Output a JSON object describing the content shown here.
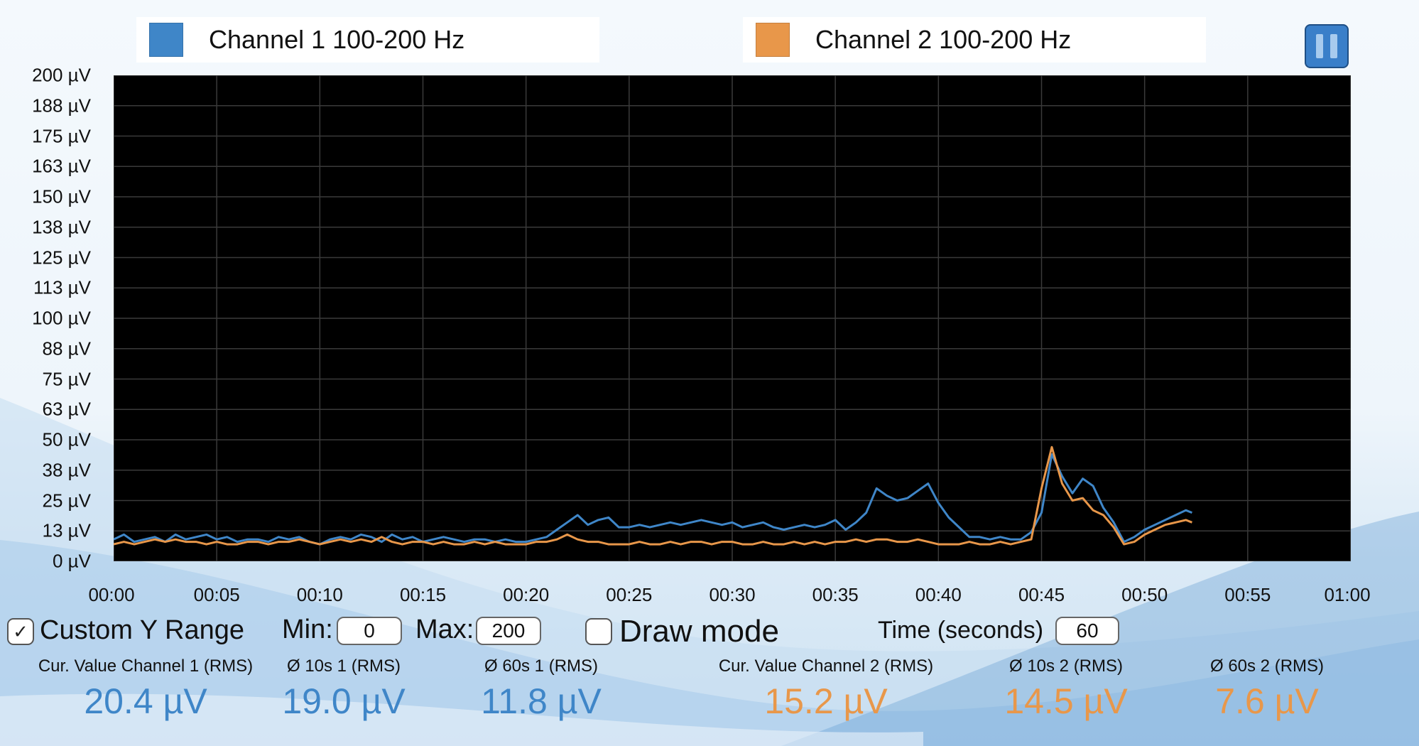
{
  "colors": {
    "channel1": "#3f86c8",
    "channel2": "#e8974a",
    "plot_bg": "#000000",
    "grid": "#3a3a3a"
  },
  "legend": [
    {
      "label": "Channel 1 100-200 Hz",
      "color": "#3f86c8"
    },
    {
      "label": "Channel 2 100-200 Hz",
      "color": "#e8974a"
    }
  ],
  "pause_button": {
    "icon": "pause-icon"
  },
  "chart_data": {
    "type": "line",
    "ylim": [
      0,
      200
    ],
    "xlim": [
      0,
      60
    ],
    "y_ticks": [
      "200 µV",
      "188 µV",
      "175 µV",
      "163 µV",
      "150 µV",
      "138 µV",
      "125 µV",
      "113 µV",
      "100 µV",
      "88 µV",
      "75 µV",
      "63 µV",
      "50 µV",
      "38 µV",
      "25 µV",
      "13 µV",
      "0 µV"
    ],
    "x_ticks": [
      "00:00",
      "00:05",
      "00:10",
      "00:15",
      "00:20",
      "00:25",
      "00:30",
      "00:35",
      "00:40",
      "00:45",
      "00:50",
      "00:55",
      "01:00"
    ],
    "grid": true,
    "series": [
      {
        "name": "Channel 1 100-200 Hz",
        "color": "#3f86c8",
        "x": [
          0,
          0.5,
          1,
          1.5,
          2,
          2.5,
          3,
          3.5,
          4,
          4.5,
          5,
          5.5,
          6,
          6.5,
          7,
          7.5,
          8,
          8.5,
          9,
          9.5,
          10,
          10.5,
          11,
          11.5,
          12,
          12.5,
          13,
          13.5,
          14,
          14.5,
          15,
          15.5,
          16,
          16.5,
          17,
          17.5,
          18,
          18.5,
          19,
          19.5,
          20,
          20.5,
          21,
          21.5,
          22,
          22.5,
          23,
          23.5,
          24,
          24.5,
          25,
          25.5,
          26,
          26.5,
          27,
          27.5,
          28,
          28.5,
          29,
          29.5,
          30,
          30.5,
          31,
          31.5,
          32,
          32.5,
          33,
          33.5,
          34,
          34.5,
          35,
          35.5,
          36,
          36.5,
          37,
          37.5,
          38,
          38.5,
          39,
          39.5,
          40,
          40.5,
          41,
          41.5,
          42,
          42.5,
          43,
          43.5,
          44,
          44.5,
          45,
          45.5,
          46,
          46.5,
          47,
          47.5,
          48,
          48.5,
          49,
          49.5,
          50,
          50.5,
          51,
          51.5,
          52,
          52.3
        ],
        "values": [
          9,
          11,
          8,
          9,
          10,
          8,
          11,
          9,
          10,
          11,
          9,
          10,
          8,
          9,
          9,
          8,
          10,
          9,
          10,
          8,
          7,
          9,
          10,
          9,
          11,
          10,
          8,
          11,
          9,
          10,
          8,
          9,
          10,
          9,
          8,
          9,
          9,
          8,
          9,
          8,
          8,
          9,
          10,
          13,
          16,
          19,
          15,
          17,
          18,
          14,
          14,
          15,
          14,
          15,
          16,
          15,
          16,
          17,
          16,
          15,
          16,
          14,
          15,
          16,
          14,
          13,
          14,
          15,
          14,
          15,
          17,
          13,
          16,
          20,
          30,
          27,
          25,
          26,
          29,
          32,
          24,
          18,
          14,
          10,
          10,
          9,
          10,
          9,
          9,
          12,
          20,
          44,
          35,
          28,
          34,
          31,
          22,
          16,
          8,
          10,
          13,
          15,
          17,
          19,
          21,
          20
        ]
      },
      {
        "name": "Channel 2 100-200 Hz",
        "color": "#e8974a",
        "x": [
          0,
          0.5,
          1,
          1.5,
          2,
          2.5,
          3,
          3.5,
          4,
          4.5,
          5,
          5.5,
          6,
          6.5,
          7,
          7.5,
          8,
          8.5,
          9,
          9.5,
          10,
          10.5,
          11,
          11.5,
          12,
          12.5,
          13,
          13.5,
          14,
          14.5,
          15,
          15.5,
          16,
          16.5,
          17,
          17.5,
          18,
          18.5,
          19,
          19.5,
          20,
          20.5,
          21,
          21.5,
          22,
          22.5,
          23,
          23.5,
          24,
          24.5,
          25,
          25.5,
          26,
          26.5,
          27,
          27.5,
          28,
          28.5,
          29,
          29.5,
          30,
          30.5,
          31,
          31.5,
          32,
          32.5,
          33,
          33.5,
          34,
          34.5,
          35,
          35.5,
          36,
          36.5,
          37,
          37.5,
          38,
          38.5,
          39,
          39.5,
          40,
          40.5,
          41,
          41.5,
          42,
          42.5,
          43,
          43.5,
          44,
          44.5,
          45,
          45.5,
          46,
          46.5,
          47,
          47.5,
          48,
          48.5,
          49,
          49.5,
          50,
          50.5,
          51,
          51.5,
          52,
          52.3
        ],
        "values": [
          7,
          8,
          7,
          8,
          9,
          8,
          9,
          8,
          8,
          7,
          8,
          7,
          7,
          8,
          8,
          7,
          8,
          8,
          9,
          8,
          7,
          8,
          9,
          8,
          9,
          8,
          10,
          8,
          7,
          8,
          8,
          7,
          8,
          7,
          7,
          8,
          7,
          8,
          7,
          7,
          7,
          8,
          8,
          9,
          11,
          9,
          8,
          8,
          7,
          7,
          7,
          8,
          7,
          7,
          8,
          7,
          8,
          8,
          7,
          8,
          8,
          7,
          7,
          8,
          7,
          7,
          8,
          7,
          8,
          7,
          8,
          8,
          9,
          8,
          9,
          9,
          8,
          8,
          9,
          8,
          7,
          7,
          7,
          8,
          7,
          7,
          8,
          7,
          8,
          9,
          30,
          47,
          32,
          25,
          26,
          21,
          19,
          14,
          7,
          8,
          11,
          13,
          15,
          16,
          17,
          16
        ]
      }
    ]
  },
  "controls": {
    "custom_y_range": {
      "label": "Custom Y Range",
      "checked": true
    },
    "min_label": "Min:",
    "min_value": "0",
    "max_label": "Max:",
    "max_value": "200",
    "draw_mode": {
      "label": "Draw mode",
      "checked": false
    },
    "time_label": "Time (seconds)",
    "time_value": "60"
  },
  "stats": [
    {
      "label": "Cur. Value Channel 1 (RMS)",
      "value": "20.4 µV",
      "color": "#3f86c8"
    },
    {
      "label": "Ø 10s 1 (RMS)",
      "value": "19.0 µV",
      "color": "#3f86c8"
    },
    {
      "label": "Ø 60s 1 (RMS)",
      "value": "11.8 µV",
      "color": "#3f86c8"
    },
    {
      "label": "Cur. Value Channel 2 (RMS)",
      "value": "15.2 µV",
      "color": "#e8974a"
    },
    {
      "label": "Ø 10s 2 (RMS)",
      "value": "14.5 µV",
      "color": "#e8974a"
    },
    {
      "label": "Ø 60s 2 (RMS)",
      "value": "7.6 µV",
      "color": "#e8974a"
    }
  ]
}
